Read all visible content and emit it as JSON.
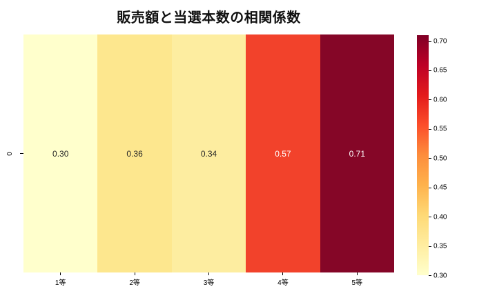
{
  "title": "販売額と当選本数の相関係数",
  "chart_data": {
    "type": "heatmap",
    "title": "販売額と当選本数の相関係数",
    "categories": [
      "1等",
      "2等",
      "3等",
      "4等",
      "5等"
    ],
    "row_labels": [
      "0"
    ],
    "rows": [
      [
        0.3,
        0.36,
        0.34,
        0.57,
        0.71
      ]
    ],
    "value_labels": [
      "0.30",
      "0.36",
      "0.34",
      "0.57",
      "0.71"
    ],
    "cell_colors": [
      "#FFFFCC",
      "#FDE78E",
      "#FDEDA0",
      "#F2422B",
      "#850627"
    ],
    "cell_text_colors": [
      "#262626",
      "#262626",
      "#262626",
      "#FFFFFF",
      "#FFFFFF"
    ],
    "colormap": "YlOrRd",
    "grid": false,
    "legend": false,
    "colorbar": {
      "position": "right",
      "min": 0.3,
      "max": 0.71,
      "tick_values": [
        0.7,
        0.65,
        0.6,
        0.55,
        0.5,
        0.45,
        0.4,
        0.35,
        0.3
      ],
      "tick_labels": [
        "0.70",
        "0.65",
        "0.60",
        "0.55",
        "0.50",
        "0.45",
        "0.40",
        "0.35",
        "0.30"
      ],
      "gradient_stops_top_to_bottom": [
        "#800026",
        "#BD0026",
        "#E31A1C",
        "#FC4E2A",
        "#FD8D3C",
        "#FEB24C",
        "#FED976",
        "#FFEDA0",
        "#FFFFCC"
      ]
    }
  }
}
